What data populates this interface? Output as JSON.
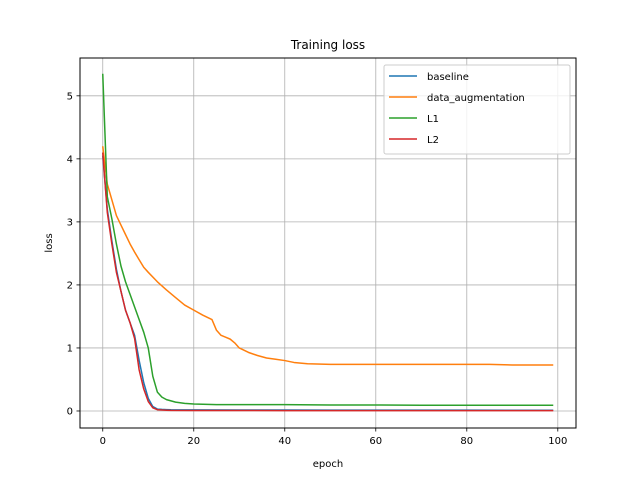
{
  "chart_data": {
    "type": "line",
    "title": "Training loss",
    "xlabel": "epoch",
    "ylabel": "loss",
    "xlim": [
      -5,
      104
    ],
    "ylim": [
      -0.27,
      5.6
    ],
    "xticks": [
      0,
      20,
      40,
      60,
      80,
      100
    ],
    "yticks": [
      0,
      1,
      2,
      3,
      4,
      5
    ],
    "grid": true,
    "legend_position": "top-right",
    "series": [
      {
        "name": "baseline",
        "color": "#1f77b4",
        "x": [
          0,
          1,
          2,
          3,
          4,
          5,
          6,
          7,
          8,
          9,
          10,
          11,
          12,
          13,
          14,
          15,
          20,
          30,
          40,
          50,
          60,
          70,
          80,
          90,
          99
        ],
        "y": [
          4.05,
          3.2,
          2.7,
          2.25,
          1.9,
          1.6,
          1.4,
          1.2,
          0.8,
          0.45,
          0.2,
          0.07,
          0.03,
          0.025,
          0.022,
          0.02,
          0.018,
          0.016,
          0.015,
          0.014,
          0.014,
          0.013,
          0.013,
          0.012,
          0.012
        ]
      },
      {
        "name": "data_augmentation",
        "color": "#ff7f0e",
        "x": [
          0,
          1,
          2,
          3,
          4,
          5,
          6,
          7,
          8,
          9,
          10,
          12,
          14,
          16,
          18,
          20,
          22,
          24,
          25,
          26,
          27,
          28,
          29,
          30,
          32,
          34,
          36,
          38,
          40,
          42,
          45,
          50,
          55,
          60,
          65,
          70,
          75,
          80,
          85,
          90,
          95,
          99
        ],
        "y": [
          4.2,
          3.6,
          3.35,
          3.1,
          2.95,
          2.8,
          2.65,
          2.52,
          2.4,
          2.28,
          2.2,
          2.05,
          1.92,
          1.8,
          1.68,
          1.6,
          1.52,
          1.45,
          1.28,
          1.2,
          1.17,
          1.14,
          1.08,
          1.0,
          0.93,
          0.88,
          0.84,
          0.82,
          0.8,
          0.77,
          0.75,
          0.74,
          0.74,
          0.74,
          0.74,
          0.74,
          0.74,
          0.74,
          0.74,
          0.73,
          0.73,
          0.73
        ]
      },
      {
        "name": "L1",
        "color": "#2ca02c",
        "x": [
          0,
          1,
          2,
          3,
          4,
          5,
          6,
          7,
          8,
          9,
          10,
          11,
          12,
          13,
          14,
          15,
          16,
          18,
          20,
          25,
          30,
          40,
          50,
          60,
          70,
          80,
          90,
          99
        ],
        "y": [
          5.35,
          3.4,
          3.05,
          2.65,
          2.3,
          2.05,
          1.85,
          1.65,
          1.45,
          1.25,
          1.0,
          0.55,
          0.3,
          0.22,
          0.18,
          0.16,
          0.14,
          0.12,
          0.11,
          0.1,
          0.1,
          0.1,
          0.095,
          0.095,
          0.09,
          0.09,
          0.09,
          0.09
        ]
      },
      {
        "name": "L2",
        "color": "#d62728",
        "x": [
          0,
          1,
          2,
          3,
          4,
          5,
          6,
          7,
          8,
          9,
          10,
          11,
          12,
          13,
          14,
          15,
          20,
          30,
          40,
          50,
          60,
          70,
          80,
          90,
          99
        ],
        "y": [
          4.1,
          3.15,
          2.65,
          2.2,
          1.9,
          1.6,
          1.4,
          1.15,
          0.65,
          0.35,
          0.15,
          0.05,
          0.02,
          0.015,
          0.012,
          0.01,
          0.008,
          0.007,
          0.006,
          0.005,
          0.005,
          0.005,
          0.005,
          0.005,
          0.005
        ]
      }
    ]
  }
}
